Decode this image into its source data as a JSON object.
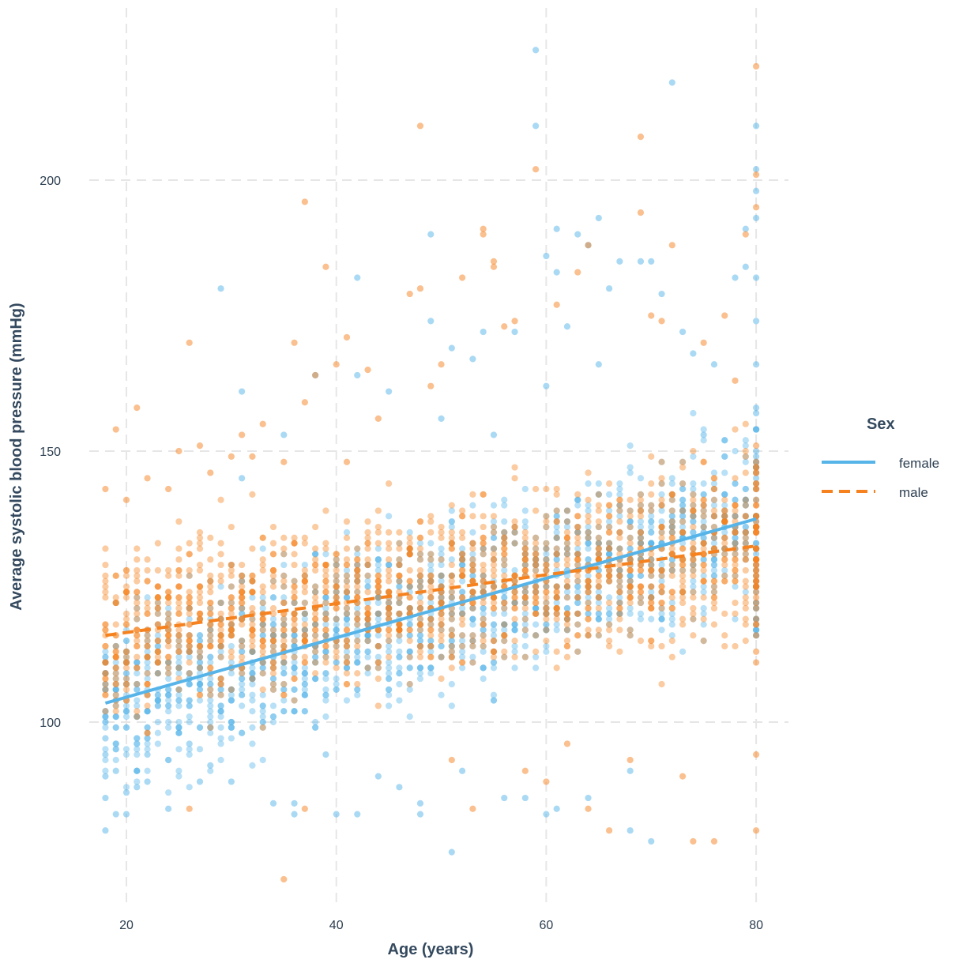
{
  "chart_data": {
    "type": "scatter",
    "xlabel": "Age (years)",
    "ylabel": "Average systolic blood pressure (mmHg)",
    "xlim": [
      14,
      81
    ],
    "ylim": [
      65,
      228
    ],
    "xticks": [
      20,
      40,
      60,
      80
    ],
    "yticks": [
      100,
      150,
      200
    ],
    "grid": true,
    "legend": {
      "title": "Sex",
      "placement": "right"
    },
    "colors": {
      "female": "#56b4e9",
      "male": "#f5821f"
    },
    "series": [
      {
        "name": "female",
        "line_style": "solid",
        "trend": {
          "x": [
            18,
            80
          ],
          "y": [
            103.5,
            137.5
          ]
        },
        "points": [
          [
            18,
            80
          ],
          [
            18,
            86
          ],
          [
            18,
            90
          ],
          [
            18,
            94
          ],
          [
            18,
            97
          ],
          [
            19,
            83
          ],
          [
            19,
            91
          ],
          [
            19,
            96
          ],
          [
            20,
            83
          ],
          [
            20,
            87
          ],
          [
            21,
            88
          ],
          [
            21,
            91
          ],
          [
            22,
            94
          ],
          [
            22,
            89
          ],
          [
            24,
            84
          ],
          [
            26,
            96
          ],
          [
            27,
            89
          ],
          [
            28,
            92
          ],
          [
            29,
            180
          ],
          [
            30,
            89
          ],
          [
            31,
            161
          ],
          [
            31,
            145
          ],
          [
            34,
            85
          ],
          [
            35,
            153
          ],
          [
            36,
            85
          ],
          [
            36,
            83
          ],
          [
            38,
            164
          ],
          [
            39,
            94
          ],
          [
            40,
            83
          ],
          [
            42,
            182
          ],
          [
            42,
            164
          ],
          [
            42,
            83
          ],
          [
            44,
            90
          ],
          [
            45,
            161
          ],
          [
            46,
            88
          ],
          [
            48,
            85
          ],
          [
            48,
            83
          ],
          [
            49,
            174
          ],
          [
            49,
            190
          ],
          [
            50,
            156
          ],
          [
            51,
            76
          ],
          [
            51,
            169
          ],
          [
            52,
            91
          ],
          [
            53,
            167
          ],
          [
            54,
            172
          ],
          [
            55,
            153
          ],
          [
            56,
            86
          ],
          [
            57,
            172
          ],
          [
            58,
            86
          ],
          [
            59,
            210
          ],
          [
            59,
            224
          ],
          [
            60,
            186
          ],
          [
            60,
            162
          ],
          [
            60,
            83
          ],
          [
            61,
            191
          ],
          [
            61,
            183
          ],
          [
            61,
            84
          ],
          [
            62,
            173
          ],
          [
            63,
            190
          ],
          [
            64,
            188
          ],
          [
            64,
            86
          ],
          [
            65,
            193
          ],
          [
            65,
            166
          ],
          [
            66,
            180
          ],
          [
            67,
            185
          ],
          [
            68,
            80
          ],
          [
            68,
            91
          ],
          [
            69,
            185
          ],
          [
            70,
            185
          ],
          [
            70,
            78
          ],
          [
            71,
            179
          ],
          [
            72,
            218
          ],
          [
            73,
            172
          ],
          [
            74,
            168
          ],
          [
            75,
            153
          ],
          [
            76,
            166
          ],
          [
            77,
            152
          ],
          [
            78,
            182
          ],
          [
            79,
            191
          ],
          [
            79,
            184
          ],
          [
            80,
            210
          ],
          [
            80,
            202
          ],
          [
            80,
            198
          ],
          [
            80,
            193
          ],
          [
            80,
            182
          ],
          [
            80,
            174
          ],
          [
            80,
            166
          ]
        ]
      },
      {
        "name": "male",
        "line_style": "dashed",
        "trend": {
          "x": [
            18,
            80
          ],
          "y": [
            116,
            132.5
          ]
        },
        "points": [
          [
            18,
            143
          ],
          [
            19,
            154
          ],
          [
            20,
            141
          ],
          [
            21,
            158
          ],
          [
            22,
            145
          ],
          [
            24,
            143
          ],
          [
            25,
            150
          ],
          [
            26,
            170
          ],
          [
            26,
            84
          ],
          [
            27,
            151
          ],
          [
            28,
            146
          ],
          [
            30,
            149
          ],
          [
            31,
            153
          ],
          [
            32,
            149
          ],
          [
            33,
            155
          ],
          [
            35,
            71
          ],
          [
            35,
            148
          ],
          [
            36,
            170
          ],
          [
            37,
            196
          ],
          [
            37,
            159
          ],
          [
            37,
            84
          ],
          [
            38,
            164
          ],
          [
            39,
            184
          ],
          [
            40,
            166
          ],
          [
            41,
            148
          ],
          [
            41,
            171
          ],
          [
            43,
            165
          ],
          [
            44,
            156
          ],
          [
            47,
            179
          ],
          [
            48,
            210
          ],
          [
            48,
            180
          ],
          [
            49,
            162
          ],
          [
            50,
            166
          ],
          [
            51,
            93
          ],
          [
            52,
            182
          ],
          [
            53,
            84
          ],
          [
            54,
            191
          ],
          [
            54,
            190
          ],
          [
            55,
            185
          ],
          [
            55,
            184
          ],
          [
            56,
            173
          ],
          [
            57,
            174
          ],
          [
            58,
            91
          ],
          [
            59,
            202
          ],
          [
            60,
            89
          ],
          [
            61,
            177
          ],
          [
            62,
            96
          ],
          [
            63,
            183
          ],
          [
            64,
            188
          ],
          [
            64,
            84
          ],
          [
            66,
            80
          ],
          [
            68,
            93
          ],
          [
            69,
            194
          ],
          [
            69,
            208
          ],
          [
            70,
            175
          ],
          [
            71,
            174
          ],
          [
            72,
            188
          ],
          [
            73,
            90
          ],
          [
            74,
            78
          ],
          [
            75,
            170
          ],
          [
            76,
            78
          ],
          [
            77,
            175
          ],
          [
            78,
            163
          ],
          [
            79,
            190
          ],
          [
            80,
            221
          ],
          [
            80,
            201
          ],
          [
            80,
            195
          ],
          [
            80,
            80
          ],
          [
            80,
            94
          ]
        ]
      }
    ]
  }
}
